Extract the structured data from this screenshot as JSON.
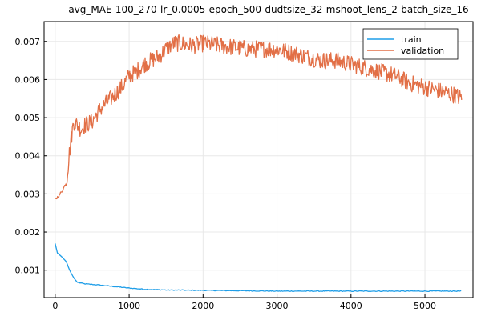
{
  "chart_data": {
    "type": "line",
    "title": "avg_MAE-100_270-lr_0.0005-epoch_500-dudtsize_32-mshoot_lens_2-batch_size_16",
    "xlabel": "",
    "ylabel": "",
    "xlim": [
      -150,
      5650
    ],
    "ylim": [
      0.00028,
      0.00752
    ],
    "x_ticks": [
      0,
      1000,
      2000,
      3000,
      4000,
      5000
    ],
    "x_tick_labels": [
      "0",
      "1000",
      "2000",
      "3000",
      "4000",
      "5000"
    ],
    "y_ticks": [
      0.001,
      0.002,
      0.003,
      0.004,
      0.005,
      0.006,
      0.007
    ],
    "y_tick_labels": [
      "0.001",
      "0.002",
      "0.003",
      "0.004",
      "0.005",
      "0.006",
      "0.007"
    ],
    "grid": true,
    "legend_position": "top-right",
    "series": [
      {
        "name": "train",
        "color": "#1f9ee8",
        "x": [
          0,
          30,
          60,
          100,
          150,
          200,
          250,
          300,
          400,
          600,
          800,
          1000,
          1200,
          1500,
          2000,
          2500,
          3000,
          3500,
          4000,
          4500,
          5000,
          5500
        ],
        "y": [
          0.0017,
          0.00145,
          0.0014,
          0.00133,
          0.00122,
          0.00098,
          0.0008,
          0.00068,
          0.00064,
          0.00061,
          0.00057,
          0.00053,
          0.0005,
          0.00048,
          0.00047,
          0.00046,
          0.00045,
          0.00045,
          0.00045,
          0.00045,
          0.00045,
          0.00045
        ]
      },
      {
        "name": "validation",
        "color": "#e26f46",
        "x": [
          0,
          50,
          100,
          150,
          200,
          220,
          250,
          300,
          350,
          400,
          500,
          600,
          700,
          800,
          900,
          1000,
          1100,
          1200,
          1300,
          1400,
          1500,
          1600,
          1700,
          1800,
          1900,
          2000,
          2200,
          2400,
          2600,
          2800,
          3000,
          3200,
          3400,
          3600,
          3800,
          4000,
          4200,
          4400,
          4600,
          4800,
          5000,
          5200,
          5400,
          5500
        ],
        "y": [
          0.00285,
          0.00295,
          0.0031,
          0.0033,
          0.0042,
          0.0045,
          0.0049,
          0.0048,
          0.0047,
          0.0048,
          0.0049,
          0.0052,
          0.0054,
          0.0056,
          0.0058,
          0.0061,
          0.0062,
          0.0064,
          0.0065,
          0.0066,
          0.0068,
          0.00695,
          0.00695,
          0.0069,
          0.0069,
          0.00695,
          0.0069,
          0.00685,
          0.0068,
          0.0068,
          0.0068,
          0.0067,
          0.0066,
          0.0065,
          0.0065,
          0.0064,
          0.0063,
          0.0062,
          0.0061,
          0.0059,
          0.0058,
          0.0057,
          0.0056,
          0.0055
        ]
      }
    ]
  }
}
